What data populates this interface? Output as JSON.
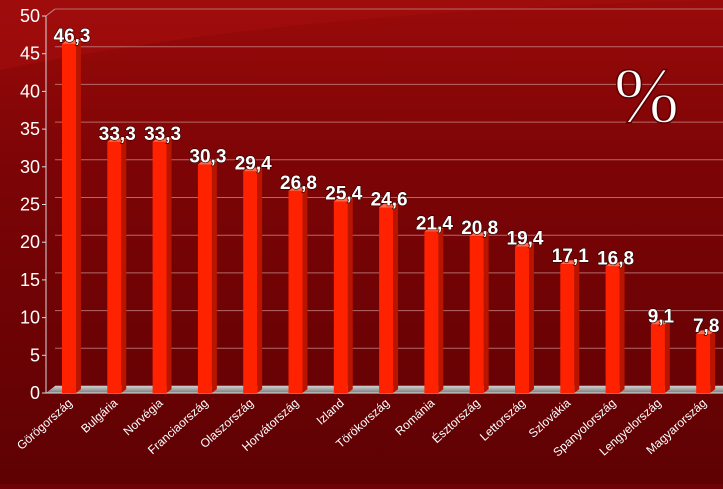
{
  "chart_data": {
    "type": "bar",
    "unit_label": "%",
    "categories": [
      "Görögország",
      "Bulgária",
      "Norvégia",
      "Franciaország",
      "Olaszország",
      "Horvátország",
      "Izland",
      "Törökország",
      "Románia",
      "Észtország",
      "Lettország",
      "Szlovákia",
      "Spanyolország",
      "Lengyelország",
      "Magyarország"
    ],
    "values": [
      46.3,
      33.3,
      33.3,
      30.3,
      29.4,
      26.8,
      25.4,
      24.6,
      21.4,
      20.8,
      19.4,
      17.1,
      16.8,
      9.1,
      7.8
    ],
    "value_labels": [
      "46,3",
      "33,3",
      "33,3",
      "30,3",
      "29,4",
      "26,8",
      "25,4",
      "24,6",
      "21,4",
      "20,8",
      "19,4",
      "17,1",
      "16,8",
      "9,1",
      "7,8"
    ],
    "yticks": [
      0,
      5,
      10,
      15,
      20,
      25,
      30,
      35,
      40,
      45,
      50
    ],
    "ylim": [
      0,
      50
    ],
    "grid": true,
    "bar_color": "#ff2200",
    "bar_side_color": "#b81500",
    "background": "#6e0204"
  }
}
